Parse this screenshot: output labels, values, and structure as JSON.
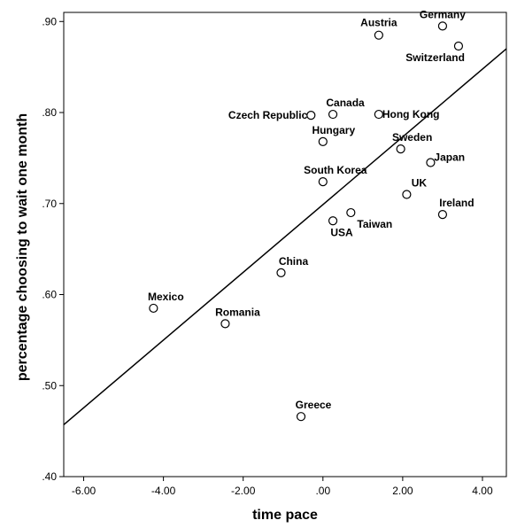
{
  "chart_data": {
    "type": "scatter",
    "xlabel": "time pace",
    "ylabel": "percentage choosing to wait one month",
    "xlim": [
      -6.5,
      4.6
    ],
    "ylim": [
      0.4,
      0.91
    ],
    "x_ticks": [
      -6,
      -4,
      -2,
      0,
      2,
      4
    ],
    "x_tick_labels": [
      "-6.00",
      "-4.00",
      "-2.00",
      ".00",
      "2.00",
      "4.00"
    ],
    "y_ticks": [
      0.4,
      0.5,
      0.6,
      0.7,
      0.8,
      0.9
    ],
    "y_tick_labels": [
      ".40",
      ".50",
      ".60",
      ".70",
      ".80",
      ".90"
    ],
    "grid": false,
    "points": [
      {
        "label": "Germany",
        "x": 3.0,
        "y": 0.895,
        "anchor": "middle",
        "dx": 0,
        "dy": -9
      },
      {
        "label": "Austria",
        "x": 1.4,
        "y": 0.885,
        "anchor": "middle",
        "dx": 0,
        "dy": -10
      },
      {
        "label": "Switzerland",
        "x": 3.4,
        "y": 0.873,
        "anchor": "end",
        "dx": 7,
        "dy": 17
      },
      {
        "label": "Canada",
        "x": 0.25,
        "y": 0.798,
        "anchor": "middle",
        "dx": 14,
        "dy": -9
      },
      {
        "label": "Czech Republic",
        "x": -0.3,
        "y": 0.797,
        "anchor": "end",
        "dx": -4,
        "dy": 4
      },
      {
        "label": "Hong Kong",
        "x": 1.4,
        "y": 0.798,
        "anchor": "start",
        "dx": 4,
        "dy": 4
      },
      {
        "label": "Hungary",
        "x": 0.0,
        "y": 0.768,
        "anchor": "middle",
        "dx": 12,
        "dy": -9
      },
      {
        "label": "Sweden",
        "x": 1.95,
        "y": 0.76,
        "anchor": "middle",
        "dx": 13,
        "dy": -9
      },
      {
        "label": "Japan",
        "x": 2.7,
        "y": 0.745,
        "anchor": "start",
        "dx": 4,
        "dy": -2
      },
      {
        "label": "South Korea",
        "x": 0.0,
        "y": 0.724,
        "anchor": "middle",
        "dx": 14,
        "dy": -9
      },
      {
        "label": "UK",
        "x": 2.1,
        "y": 0.71,
        "anchor": "middle",
        "dx": 14,
        "dy": -9
      },
      {
        "label": "Ireland",
        "x": 3.0,
        "y": 0.688,
        "anchor": "middle",
        "dx": 16,
        "dy": -9
      },
      {
        "label": "Taiwan",
        "x": 0.7,
        "y": 0.69,
        "anchor": "middle",
        "dx": 27,
        "dy": 17
      },
      {
        "label": "USA",
        "x": 0.25,
        "y": 0.681,
        "anchor": "middle",
        "dx": 10,
        "dy": 17
      },
      {
        "label": "China",
        "x": -1.05,
        "y": 0.624,
        "anchor": "middle",
        "dx": 14,
        "dy": -9
      },
      {
        "label": "Mexico",
        "x": -4.25,
        "y": 0.585,
        "anchor": "middle",
        "dx": 14,
        "dy": -9
      },
      {
        "label": "Romania",
        "x": -2.45,
        "y": 0.568,
        "anchor": "middle",
        "dx": 14,
        "dy": -9
      },
      {
        "label": "Greece",
        "x": -0.55,
        "y": 0.466,
        "anchor": "middle",
        "dx": 14,
        "dy": -9
      }
    ],
    "fit_line": {
      "x": [
        -6.5,
        4.6
      ],
      "y": [
        0.457,
        0.87
      ]
    }
  }
}
